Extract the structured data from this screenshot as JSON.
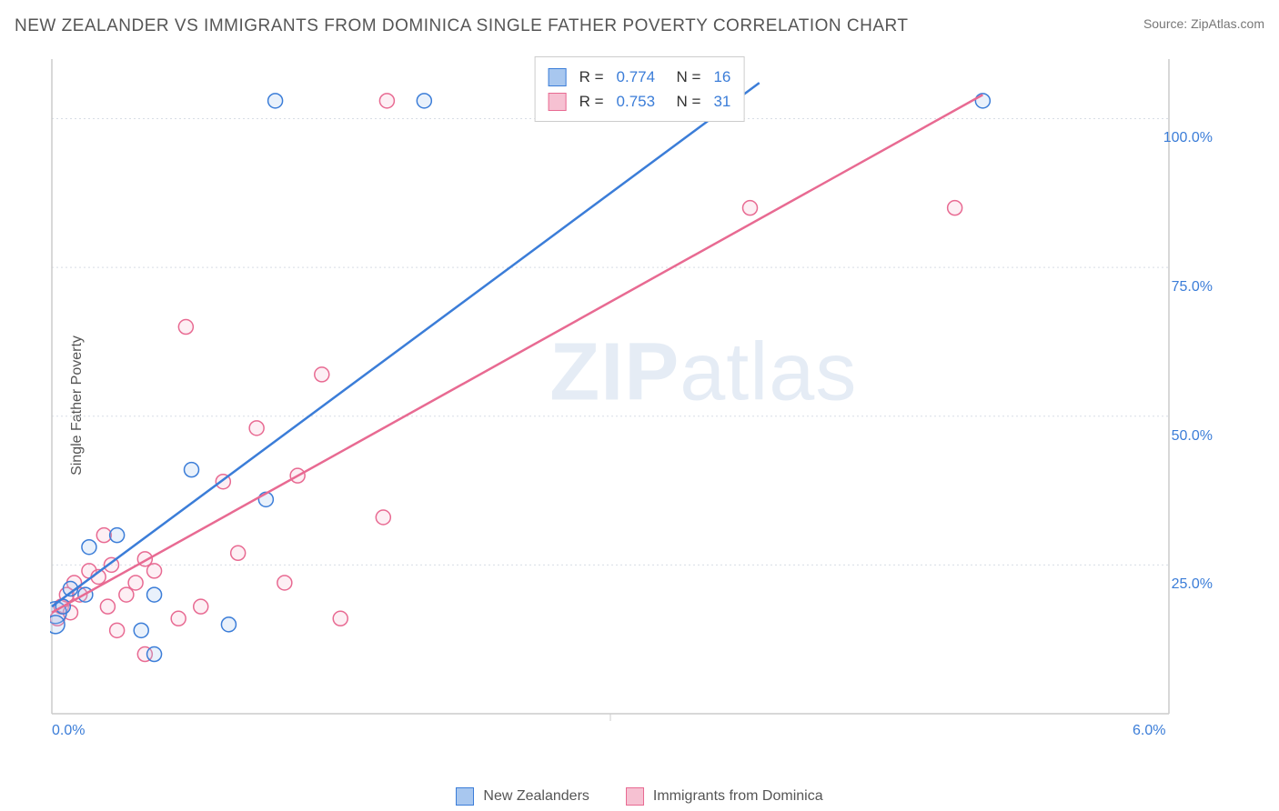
{
  "title": "NEW ZEALANDER VS IMMIGRANTS FROM DOMINICA SINGLE FATHER POVERTY CORRELATION CHART",
  "source_label": "Source: ZipAtlas.com",
  "ylabel": "Single Father Poverty",
  "watermark": {
    "bold": "ZIP",
    "thin": "atlas"
  },
  "chart": {
    "type": "scatter",
    "xlim": [
      0,
      6.0
    ],
    "ylim": [
      0,
      110
    ],
    "background_color": "#ffffff",
    "grid_color": "#d7dde5",
    "grid_dash": "2,3",
    "axis_color": "#cccccc",
    "yticks": [
      {
        "v": 25,
        "label": "25.0%"
      },
      {
        "v": 50,
        "label": "50.0%"
      },
      {
        "v": 75,
        "label": "75.0%"
      },
      {
        "v": 100,
        "label": "100.0%"
      }
    ],
    "xticks": [
      {
        "v": 0,
        "label": "0.0%"
      },
      {
        "v": 3,
        "label": ""
      },
      {
        "v": 6,
        "label": "6.0%"
      }
    ],
    "marker_radius": 8,
    "marker_fill_opacity": 0.25,
    "marker_stroke_width": 1.5,
    "line_width": 2.5,
    "series": [
      {
        "name": "New Zealanders",
        "color_stroke": "#3b7dd8",
        "color_fill": "#a8c7ef",
        "r": "0.774",
        "n": "16",
        "trend": {
          "x1": 0,
          "y1": 18,
          "x2": 3.8,
          "y2": 106
        },
        "points": [
          {
            "x": 0.02,
            "y": 17,
            "r": 12
          },
          {
            "x": 0.02,
            "y": 15,
            "r": 10
          },
          {
            "x": 0.06,
            "y": 18
          },
          {
            "x": 0.1,
            "y": 21
          },
          {
            "x": 0.18,
            "y": 20
          },
          {
            "x": 0.2,
            "y": 28
          },
          {
            "x": 0.35,
            "y": 30
          },
          {
            "x": 0.48,
            "y": 14
          },
          {
            "x": 0.55,
            "y": 20
          },
          {
            "x": 0.55,
            "y": 10
          },
          {
            "x": 0.75,
            "y": 41
          },
          {
            "x": 0.95,
            "y": 15
          },
          {
            "x": 1.15,
            "y": 36
          },
          {
            "x": 1.2,
            "y": 103
          },
          {
            "x": 2.0,
            "y": 103
          },
          {
            "x": 5.0,
            "y": 103
          }
        ]
      },
      {
        "name": "Immigrants from Dominica",
        "color_stroke": "#e86a92",
        "color_fill": "#f6c1d2",
        "r": "0.753",
        "n": "31",
        "trend": {
          "x1": 0,
          "y1": 17,
          "x2": 5.0,
          "y2": 104
        },
        "points": [
          {
            "x": 0.03,
            "y": 16
          },
          {
            "x": 0.05,
            "y": 18
          },
          {
            "x": 0.08,
            "y": 20
          },
          {
            "x": 0.1,
            "y": 17
          },
          {
            "x": 0.12,
            "y": 22
          },
          {
            "x": 0.15,
            "y": 20
          },
          {
            "x": 0.2,
            "y": 24
          },
          {
            "x": 0.25,
            "y": 23
          },
          {
            "x": 0.28,
            "y": 30
          },
          {
            "x": 0.3,
            "y": 18
          },
          {
            "x": 0.32,
            "y": 25
          },
          {
            "x": 0.35,
            "y": 14
          },
          {
            "x": 0.4,
            "y": 20
          },
          {
            "x": 0.45,
            "y": 22
          },
          {
            "x": 0.5,
            "y": 26
          },
          {
            "x": 0.5,
            "y": 10
          },
          {
            "x": 0.55,
            "y": 24
          },
          {
            "x": 0.68,
            "y": 16
          },
          {
            "x": 0.72,
            "y": 65
          },
          {
            "x": 0.8,
            "y": 18
          },
          {
            "x": 0.92,
            "y": 39
          },
          {
            "x": 1.0,
            "y": 27
          },
          {
            "x": 1.1,
            "y": 48
          },
          {
            "x": 1.25,
            "y": 22
          },
          {
            "x": 1.32,
            "y": 40
          },
          {
            "x": 1.45,
            "y": 57
          },
          {
            "x": 1.55,
            "y": 16
          },
          {
            "x": 1.78,
            "y": 33
          },
          {
            "x": 1.8,
            "y": 103
          },
          {
            "x": 3.75,
            "y": 85
          },
          {
            "x": 4.85,
            "y": 85
          }
        ]
      }
    ]
  },
  "bottom_legend": [
    {
      "label": "New Zealanders",
      "stroke": "#3b7dd8",
      "fill": "#a8c7ef"
    },
    {
      "label": "Immigrants from Dominica",
      "stroke": "#e86a92",
      "fill": "#f6c1d2"
    }
  ]
}
